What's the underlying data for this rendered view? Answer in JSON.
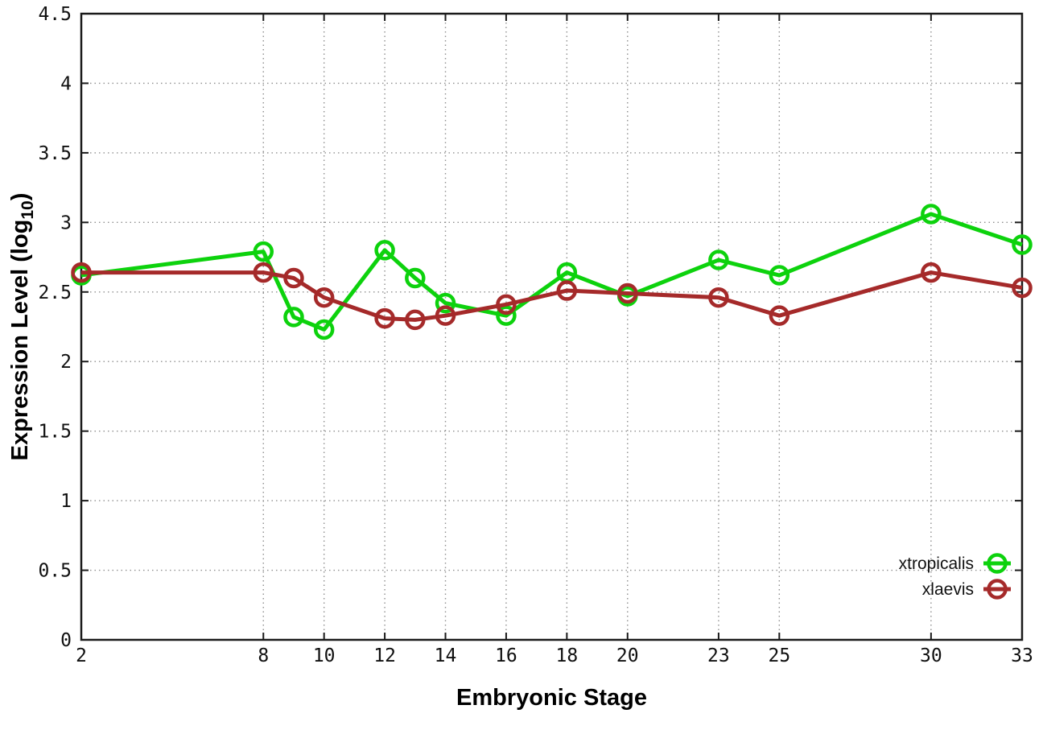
{
  "figure": {
    "xlabel": "Embryonic Stage",
    "ylabel_parts": [
      "Expression Level (log",
      "10",
      ")"
    ]
  },
  "chart_data": {
    "type": "line",
    "title": "",
    "xlabel": "Embryonic Stage",
    "ylabel": "Expression Level (log10)",
    "xlim": [
      2,
      33
    ],
    "ylim": [
      0,
      4.5
    ],
    "xticks": [
      2,
      8,
      10,
      12,
      14,
      16,
      18,
      20,
      23,
      25,
      30,
      33
    ],
    "yticks": [
      0,
      0.5,
      1,
      1.5,
      2,
      2.5,
      3,
      3.5,
      4,
      4.5
    ],
    "grid": true,
    "marker": "open-circle",
    "legend_position": "inside-bottom-right",
    "x": [
      2,
      8,
      9,
      10,
      12,
      13,
      14,
      16,
      18,
      20,
      23,
      25,
      30,
      33
    ],
    "series": [
      {
        "name": "xtropicalis",
        "color": "#0dd20d",
        "values": [
          2.62,
          2.79,
          2.32,
          2.23,
          2.8,
          2.6,
          2.42,
          2.33,
          2.64,
          2.47,
          2.73,
          2.62,
          3.06,
          2.84
        ]
      },
      {
        "name": "xlaevis",
        "color": "#a52a2a",
        "values": [
          2.64,
          2.64,
          2.6,
          2.46,
          2.31,
          2.3,
          2.33,
          2.41,
          2.51,
          2.49,
          2.46,
          2.33,
          2.64,
          2.53
        ]
      }
    ],
    "axis_color": "#1a1a1a",
    "grid_color": "#8f8f8f"
  }
}
